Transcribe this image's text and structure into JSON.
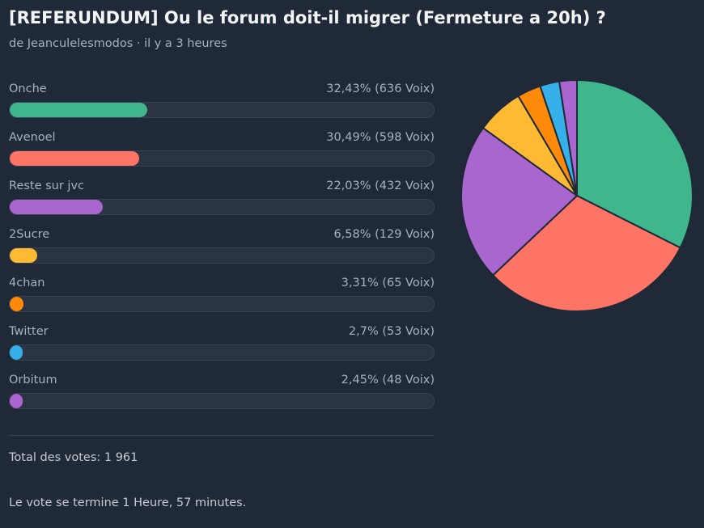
{
  "poll": {
    "title": "[REFERUNDUM] Ou le forum doit-il migrer (Fermeture a 20h) ?",
    "byline": "de Jeanculelesmodos · il y a 3 heures",
    "total_label": "Total des votes: 1 961",
    "ends_label": "Le vote se termine 1 Heure, 57 minutes.",
    "options": [
      {
        "label": "Onche",
        "result": "32,43% (636 Voix)",
        "percent": 32.43,
        "votes": 636,
        "color": "#3fb68b"
      },
      {
        "label": "Avenoel",
        "result": "30,49% (598 Voix)",
        "percent": 30.49,
        "votes": 598,
        "color": "#ff7464"
      },
      {
        "label": "Reste sur jvc",
        "result": "22,03% (432 Voix)",
        "percent": 22.03,
        "votes": 432,
        "color": "#a966cf"
      },
      {
        "label": "2Sucre",
        "result": "6,58% (129 Voix)",
        "percent": 6.58,
        "votes": 129,
        "color": "#ffba33"
      },
      {
        "label": "4chan",
        "result": "3,31% (65 Voix)",
        "percent": 3.31,
        "votes": 65,
        "color": "#ff8a0a"
      },
      {
        "label": "Twitter",
        "result": "2,7% (53 Voix)",
        "percent": 2.7,
        "votes": 53,
        "color": "#36b0e8"
      },
      {
        "label": "Orbitum",
        "result": "2,45% (48 Voix)",
        "percent": 2.45,
        "votes": 48,
        "color": "#a966cf"
      }
    ]
  }
}
